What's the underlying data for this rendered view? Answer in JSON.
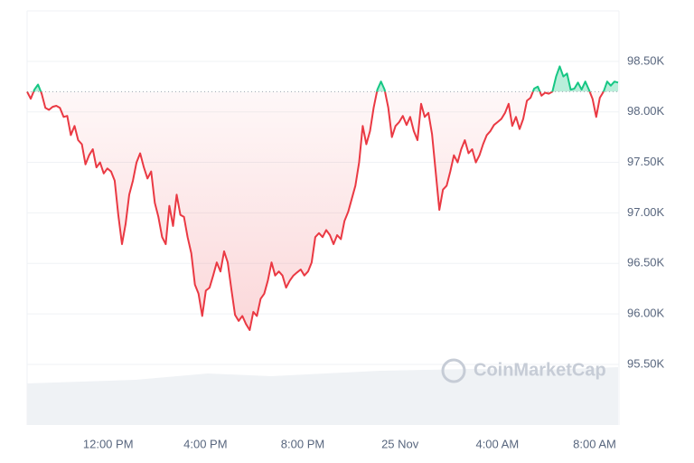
{
  "chart_data": {
    "type": "line",
    "x": [
      520,
      529,
      538,
      547,
      556,
      565,
      574,
      583,
      592,
      601,
      610,
      619,
      628,
      637,
      646,
      655,
      664,
      673,
      682,
      691,
      700,
      709,
      718,
      727,
      736,
      745,
      754,
      763,
      772,
      781,
      790,
      799,
      808,
      817,
      826,
      835,
      844,
      853,
      862,
      871,
      880,
      889,
      898,
      907,
      916,
      925,
      934,
      943,
      952,
      961,
      970,
      979,
      988,
      997,
      1006,
      1015,
      1024,
      1033,
      1042,
      1051,
      1060,
      1069,
      1078,
      1087,
      1096,
      1105,
      1114,
      1123,
      1132,
      1141,
      1150,
      1159,
      1168,
      1177,
      1186,
      1195,
      1204,
      1213,
      1222,
      1231,
      1240,
      1249,
      1258,
      1267,
      1276,
      1285,
      1294,
      1303,
      1312,
      1321,
      1330,
      1339,
      1348,
      1357,
      1366,
      1375,
      1384,
      1393,
      1402,
      1411,
      1420,
      1429,
      1438,
      1447,
      1456,
      1465,
      1474,
      1483,
      1492,
      1501,
      1510,
      1519,
      1528,
      1537,
      1546,
      1555,
      1564,
      1573,
      1582,
      1591,
      1600,
      1609,
      1618,
      1627,
      1636,
      1645,
      1654,
      1663,
      1672,
      1681,
      1690,
      1699,
      1708,
      1717,
      1726,
      1735,
      1744,
      1753,
      1762,
      1771,
      1780,
      1789,
      1798,
      1807,
      1816,
      1825,
      1834,
      1843,
      1852,
      1861,
      1870,
      1879,
      1888,
      1897,
      1906,
      1915,
      1924,
      1933,
      1942,
      1951,
      1960,
      1969,
      1978
    ],
    "values": [
      98200,
      98130,
      98220,
      98270,
      98180,
      98040,
      98020,
      98050,
      98060,
      98040,
      97950,
      97960,
      97770,
      97860,
      97720,
      97680,
      97480,
      97570,
      97630,
      97450,
      97500,
      97390,
      97440,
      97410,
      97320,
      96980,
      96690,
      96890,
      97180,
      97320,
      97500,
      97590,
      97450,
      97340,
      97410,
      97100,
      96960,
      96760,
      96690,
      97070,
      96870,
      97180,
      96980,
      96960,
      96760,
      96600,
      96290,
      96200,
      95980,
      96230,
      96260,
      96380,
      96510,
      96420,
      96620,
      96510,
      96240,
      95990,
      95930,
      95980,
      95900,
      95840,
      96020,
      95980,
      96150,
      96200,
      96330,
      96510,
      96380,
      96420,
      96380,
      96260,
      96330,
      96380,
      96410,
      96440,
      96380,
      96420,
      96510,
      96760,
      96800,
      96760,
      96830,
      96780,
      96690,
      96780,
      96740,
      96920,
      97010,
      97140,
      97270,
      97500,
      97860,
      97680,
      97810,
      98040,
      98220,
      98300,
      98220,
      98040,
      97750,
      97860,
      97900,
      97960,
      97870,
      97950,
      97810,
      97720,
      98080,
      97950,
      97990,
      97780,
      97410,
      97030,
      97230,
      97270,
      97410,
      97570,
      97500,
      97630,
      97720,
      97590,
      97630,
      97500,
      97570,
      97680,
      97770,
      97810,
      97870,
      97900,
      97930,
      97990,
      98080,
      97860,
      97950,
      97830,
      97930,
      98110,
      98140,
      98230,
      98250,
      98160,
      98190,
      98180,
      98200,
      98350,
      98450,
      98350,
      98380,
      98220,
      98230,
      98290,
      98220,
      98300,
      98220,
      98130,
      97950,
      98140,
      98200,
      98300,
      98260,
      98300,
      98290
    ],
    "baseline": 98200,
    "color_up": "#16c784",
    "color_down": "#ea3943",
    "xlim": [
      520,
      1978
    ],
    "xticks": [
      {
        "value": 720,
        "label": "12:00 PM"
      },
      {
        "value": 960,
        "label": "4:00 PM"
      },
      {
        "value": 1200,
        "label": "8:00 PM"
      },
      {
        "value": 1440,
        "label": "25 Nov"
      },
      {
        "value": 1680,
        "label": "4:00 AM"
      },
      {
        "value": 1920,
        "label": "8:00 AM"
      }
    ],
    "ylim": [
      94900,
      99000
    ],
    "yticks": [
      {
        "value": 98500,
        "label": "98.50K"
      },
      {
        "value": 98000,
        "label": "98.00K"
      },
      {
        "value": 97500,
        "label": "97.50K"
      },
      {
        "value": 97000,
        "label": "97.00K"
      },
      {
        "value": 96500,
        "label": "96.50K"
      },
      {
        "value": 96000,
        "label": "96.00K"
      },
      {
        "value": 95500,
        "label": "95.50K"
      }
    ],
    "grid": true,
    "watermark": "CoinMarketCap"
  }
}
